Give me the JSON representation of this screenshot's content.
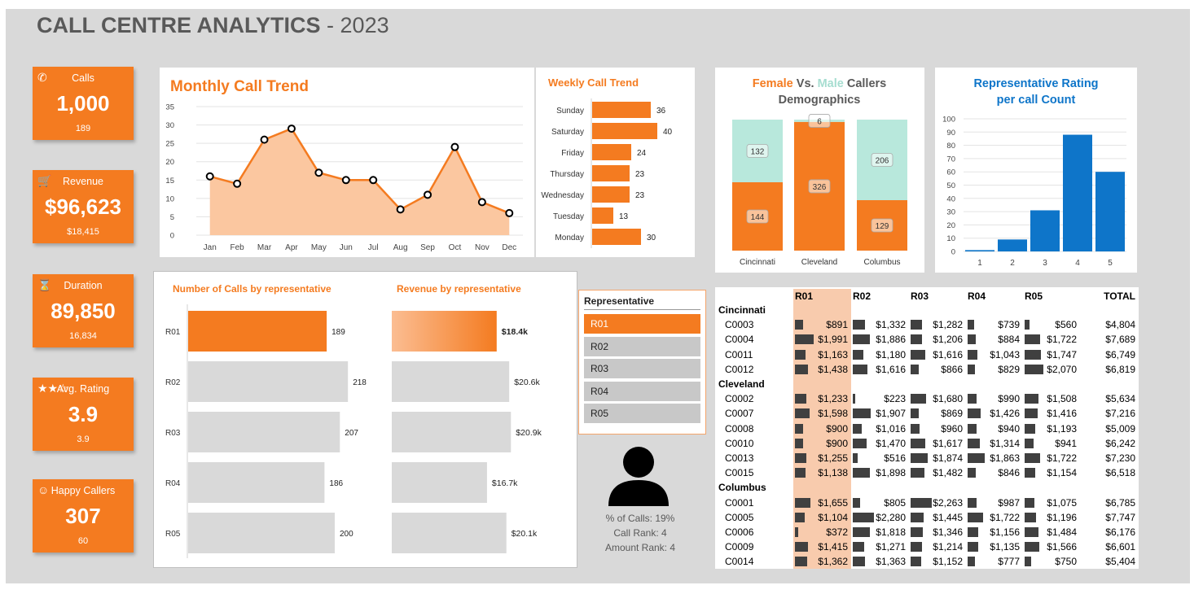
{
  "header": {
    "title_bold": "CALL CENTRE ANALYTICS",
    "title_sep": " - ",
    "title_year": "2023"
  },
  "kpis": [
    {
      "label": "Calls",
      "value": "1,000",
      "sub": "189",
      "icon": "phone-icon",
      "glyph": "✆"
    },
    {
      "label": "Revenue",
      "value": "$96,623",
      "sub": "$18,415",
      "icon": "cart-icon",
      "glyph": "🛒"
    },
    {
      "label": "Duration",
      "value": "89,850",
      "sub": "16,834",
      "icon": "hourglass-icon",
      "glyph": "⌛"
    },
    {
      "label": "Avg. Rating",
      "value": "3.9",
      "sub": "3.9",
      "icon": "stars-icon",
      "glyph": "★★☆"
    },
    {
      "label": "Happy Callers",
      "value": "307",
      "sub": "60",
      "icon": "smiley-icon",
      "glyph": "☺"
    }
  ],
  "slicer": {
    "title": "Representative",
    "items": [
      "R01",
      "R02",
      "R03",
      "R04",
      "R05"
    ],
    "selected": "R01"
  },
  "rep_stats": {
    "pct_calls": "% of Calls: 19%",
    "call_rank": "Call Rank: 4",
    "amount_rank": "Amount Rank: 4"
  },
  "colors": {
    "orange": "#f47b20",
    "light_orange": "#f8cbad",
    "teal": "#b8e8dc",
    "blue": "#0e75c9",
    "gray": "#d9d9d9"
  },
  "chart_data": [
    {
      "type": "area",
      "title": "Monthly Call Trend",
      "categories": [
        "Jan",
        "Feb",
        "Mar",
        "Apr",
        "May",
        "Jun",
        "Jul",
        "Aug",
        "Sep",
        "Oct",
        "Nov",
        "Dec"
      ],
      "values": [
        16,
        14,
        26,
        29,
        17,
        15,
        15,
        7,
        11,
        24,
        9,
        6
      ],
      "ylim": [
        0,
        35
      ],
      "yticks": [
        0,
        5,
        10,
        15,
        20,
        25,
        30,
        35
      ]
    },
    {
      "type": "bar",
      "title": "Weekly Call Trend",
      "orientation": "horizontal",
      "categories": [
        "Sunday",
        "Saturday",
        "Friday",
        "Thursday",
        "Wednesday",
        "Tuesday",
        "Monday"
      ],
      "values": [
        36,
        40,
        24,
        23,
        23,
        13,
        30
      ]
    },
    {
      "type": "bar",
      "title_parts": [
        "Female",
        " Vs. ",
        "Male",
        " Callers",
        "Demographics"
      ],
      "stacked": true,
      "categories": [
        "Cincinnati",
        "Cleveland",
        "Columbus"
      ],
      "series": [
        {
          "name": "Female",
          "values": [
            144,
            326,
            129
          ]
        },
        {
          "name": "Male",
          "values": [
            132,
            6,
            206
          ]
        }
      ]
    },
    {
      "type": "bar",
      "title_lines": [
        "Representative Rating",
        "per call Count"
      ],
      "categories": [
        "1",
        "2",
        "3",
        "4",
        "5"
      ],
      "values": [
        1,
        9,
        31,
        88,
        60
      ],
      "ylim": [
        0,
        100
      ],
      "yticks": [
        0,
        10,
        20,
        30,
        40,
        50,
        60,
        70,
        80,
        90,
        100
      ]
    },
    {
      "type": "bar",
      "title": "Number of Calls by representative",
      "orientation": "horizontal",
      "categories": [
        "R01",
        "R02",
        "R03",
        "R04",
        "R05"
      ],
      "values": [
        189,
        218,
        207,
        186,
        200
      ]
    },
    {
      "type": "bar",
      "title": "Revenue by representative",
      "orientation": "horizontal",
      "categories": [
        "R01",
        "R02",
        "R03",
        "R04",
        "R05"
      ],
      "values": [
        18.4,
        20.6,
        20.9,
        16.7,
        20.1
      ],
      "labels": [
        "$18.4k",
        "$20.6k",
        "$20.9k",
        "$16.7k",
        "$20.1k"
      ]
    },
    {
      "type": "table",
      "columns": [
        "",
        "R01",
        "R02",
        "R03",
        "R04",
        "R05",
        "TOTAL"
      ],
      "groups": [
        {
          "city": "Cincinnati",
          "rows": [
            {
              "id": "C0003",
              "values": [
                891,
                1332,
                1282,
                739,
                560
              ],
              "total": 4804
            },
            {
              "id": "C0004",
              "values": [
                1991,
                1886,
                1206,
                884,
                1722
              ],
              "total": 7689
            },
            {
              "id": "C0011",
              "values": [
                1163,
                1180,
                1616,
                1043,
                1747
              ],
              "total": 6749
            },
            {
              "id": "C0012",
              "values": [
                1438,
                1616,
                866,
                829,
                2070
              ],
              "total": 6819
            }
          ]
        },
        {
          "city": "Cleveland",
          "rows": [
            {
              "id": "C0002",
              "values": [
                1233,
                223,
                1680,
                990,
                1508
              ],
              "total": 5634
            },
            {
              "id": "C0007",
              "values": [
                1598,
                1907,
                869,
                1426,
                1416
              ],
              "total": 7216
            },
            {
              "id": "C0008",
              "values": [
                900,
                1016,
                960,
                940,
                1193
              ],
              "total": 5009
            },
            {
              "id": "C0010",
              "values": [
                900,
                1470,
                1617,
                1314,
                941
              ],
              "total": 6242
            },
            {
              "id": "C0013",
              "values": [
                1255,
                516,
                1874,
                1863,
                1722
              ],
              "total": 7230
            },
            {
              "id": "C0015",
              "values": [
                1138,
                1898,
                1482,
                846,
                1154
              ],
              "total": 6518
            }
          ]
        },
        {
          "city": "Columbus",
          "rows": [
            {
              "id": "C0001",
              "values": [
                1655,
                805,
                2263,
                987,
                1075
              ],
              "total": 6785
            },
            {
              "id": "C0005",
              "values": [
                1104,
                2280,
                1445,
                1722,
                1196
              ],
              "total": 7747
            },
            {
              "id": "C0006",
              "values": [
                372,
                1818,
                1346,
                1156,
                1484
              ],
              "total": 6176
            },
            {
              "id": "C0009",
              "values": [
                1415,
                1271,
                1214,
                1135,
                1566
              ],
              "total": 6601
            },
            {
              "id": "C0014",
              "values": [
                1362,
                1363,
                1152,
                777,
                750
              ],
              "total": 5404
            }
          ]
        }
      ]
    }
  ]
}
